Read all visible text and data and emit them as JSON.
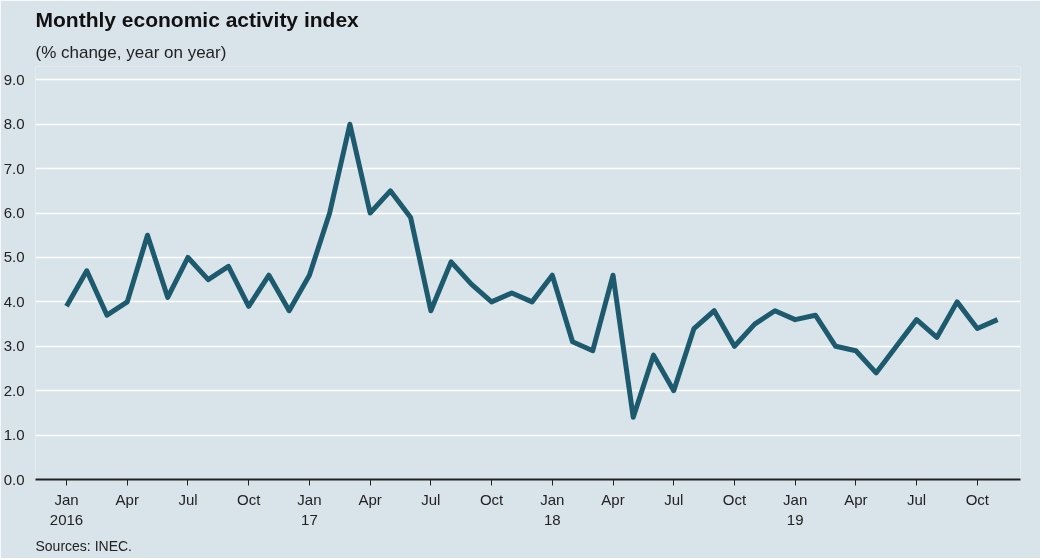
{
  "chart_data": {
    "type": "line",
    "title": "Monthly economic activity index",
    "subtitle": "(% change, year on year)",
    "annotations": [
      "Sources: INEC."
    ],
    "x": [
      "2016-01",
      "2016-02",
      "2016-03",
      "2016-04",
      "2016-05",
      "2016-06",
      "2016-07",
      "2016-08",
      "2016-09",
      "2016-10",
      "2016-11",
      "2016-12",
      "2017-01",
      "2017-02",
      "2017-03",
      "2017-04",
      "2017-05",
      "2017-06",
      "2017-07",
      "2017-08",
      "2017-09",
      "2017-10",
      "2017-11",
      "2017-12",
      "2018-01",
      "2018-02",
      "2018-03",
      "2018-04",
      "2018-05",
      "2018-06",
      "2018-07",
      "2018-08",
      "2018-09",
      "2018-10",
      "2018-11",
      "2018-12",
      "2019-01",
      "2019-02",
      "2019-03",
      "2019-04",
      "2019-05",
      "2019-06",
      "2019-07",
      "2019-08",
      "2019-09",
      "2019-10",
      "2019-11"
    ],
    "series": [
      {
        "color": "#1d5a6e",
        "values": [
          3.9,
          4.7,
          3.7,
          4.0,
          5.5,
          4.1,
          5.0,
          4.5,
          4.8,
          3.9,
          4.6,
          3.8,
          4.6,
          6.0,
          8.0,
          6.0,
          6.5,
          5.9,
          3.8,
          4.9,
          4.4,
          4.0,
          4.2,
          4.0,
          4.6,
          3.1,
          2.9,
          4.6,
          1.4,
          2.8,
          2.0,
          3.4,
          3.8,
          3.0,
          3.5,
          3.8,
          3.6,
          3.7,
          3.0,
          2.9,
          2.4,
          3.0,
          3.6,
          3.2,
          4.0,
          3.4,
          3.6
        ]
      }
    ],
    "xlim": [
      "2015-11-15",
      "2019-12-05"
    ],
    "xticks": [
      {
        "value": "2016-01",
        "label": "Jan\n2016"
      },
      {
        "value": "2016-04",
        "label": "Apr"
      },
      {
        "value": "2016-07",
        "label": "Jul"
      },
      {
        "value": "2016-10",
        "label": "Oct"
      },
      {
        "value": "2017-01",
        "label": "Jan\n17"
      },
      {
        "value": "2017-04",
        "label": "Apr"
      },
      {
        "value": "2017-07",
        "label": "Jul"
      },
      {
        "value": "2017-10",
        "label": "Oct"
      },
      {
        "value": "2018-01",
        "label": "Jan\n18"
      },
      {
        "value": "2018-04",
        "label": "Apr"
      },
      {
        "value": "2018-07",
        "label": "Jul"
      },
      {
        "value": "2018-10",
        "label": "Oct"
      },
      {
        "value": "2019-01",
        "label": "Jan\n19"
      },
      {
        "value": "2019-04",
        "label": "Apr"
      },
      {
        "value": "2019-07",
        "label": "Jul"
      },
      {
        "value": "2019-10",
        "label": "Oct"
      }
    ],
    "ylim": [
      0,
      9.3
    ],
    "yticks": [
      {
        "value": 0,
        "label": "0.0"
      },
      {
        "value": 1,
        "label": "1.0"
      },
      {
        "value": 2,
        "label": "2.0"
      },
      {
        "value": 3,
        "label": "3.0"
      },
      {
        "value": 4,
        "label": "4.0"
      },
      {
        "value": 5,
        "label": "5.0"
      },
      {
        "value": 6,
        "label": "6.0"
      },
      {
        "value": 7,
        "label": "7.0"
      },
      {
        "value": 8,
        "label": "8.0"
      },
      {
        "value": 9,
        "label": "9.0"
      }
    ],
    "grid": "y",
    "marker": "none",
    "line_style": "solid"
  }
}
